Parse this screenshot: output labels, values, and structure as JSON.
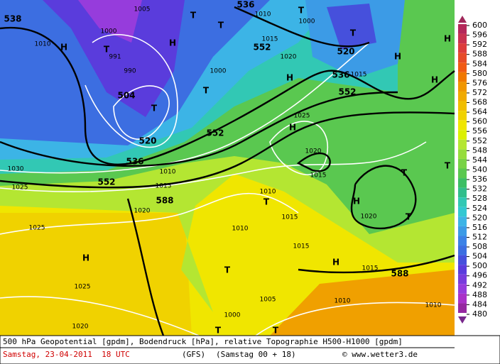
{
  "map": {
    "labels": [
      "538",
      "1005",
      "1000",
      "1010",
      "H",
      "T",
      "991",
      "990",
      "504",
      "T",
      "520",
      "536",
      "552",
      "1030",
      "1025",
      "1020",
      "588",
      "H",
      "T",
      "T",
      "536",
      "1010",
      "T",
      "1000",
      "T",
      "520",
      "552",
      "1015",
      "1020",
      "536",
      "1015",
      "552",
      "H",
      "H",
      "H",
      "H",
      "1025",
      "H",
      "1020",
      "552",
      "T",
      "1000",
      "1015",
      "1010",
      "T",
      "1015",
      "1010",
      "T",
      "1015",
      "H",
      "588",
      "1015",
      "H",
      "1020",
      "T",
      "T",
      "T",
      "1025",
      "H",
      "1025",
      "1020",
      "1000",
      "1005",
      "1010",
      "1010",
      "T",
      "T",
      "1010",
      "1015"
    ]
  },
  "legend": {
    "ticks": [
      "600",
      "596",
      "592",
      "588",
      "584",
      "580",
      "576",
      "572",
      "568",
      "564",
      "560",
      "556",
      "552",
      "548",
      "544",
      "540",
      "536",
      "532",
      "528",
      "524",
      "520",
      "516",
      "512",
      "508",
      "504",
      "500",
      "496",
      "492",
      "488",
      "484",
      "480"
    ],
    "colors": [
      "#b4285a",
      "#c83250",
      "#dc3c3c",
      "#e64b28",
      "#f05a14",
      "#f07800",
      "#f09600",
      "#f0aa00",
      "#f0be00",
      "#f0d200",
      "#f0e600",
      "#dcf000",
      "#b4e632",
      "#96dc3c",
      "#78d246",
      "#5ac850",
      "#3cbe64",
      "#32be8c",
      "#32c8b4",
      "#32c8d2",
      "#3cb4e6",
      "#3c9be6",
      "#3c82e6",
      "#3c6ee1",
      "#4650dc",
      "#5a3cdc",
      "#783cdc",
      "#963cdc",
      "#aa32c8",
      "#9628a0"
    ]
  },
  "footer": {
    "line1": "500 hPa Geopotential [gpdm], Bodendruck [hPa], relative Topographie H500-H1000 [gpdm]",
    "date": "Samstag, 23-04-2011  18 UTC",
    "model": "(GFS)",
    "run": "(Samstag 00 + 18)",
    "credit": "© www.wetter3.de"
  }
}
